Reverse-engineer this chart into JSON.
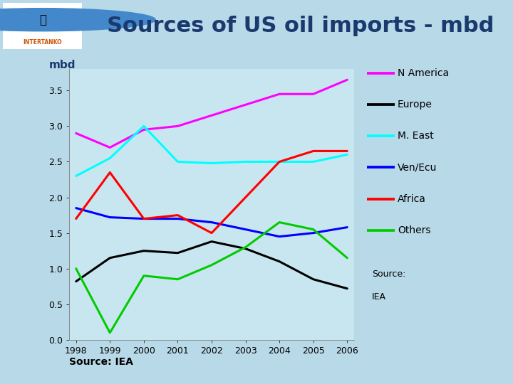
{
  "title": "Sources of US oil imports - mbd",
  "ylabel": "mbd",
  "source_text2": "Source: IEA",
  "years": [
    1998,
    1999,
    2000,
    2001,
    2002,
    2003,
    2004,
    2005,
    2006
  ],
  "series": {
    "N America": {
      "color": "#FF00FF",
      "values": [
        2.9,
        2.7,
        2.95,
        3.0,
        3.15,
        3.3,
        3.45,
        3.45,
        3.65
      ]
    },
    "Europe": {
      "color": "#000000",
      "values": [
        0.82,
        1.15,
        1.25,
        1.22,
        1.38,
        1.28,
        1.1,
        0.85,
        0.72
      ]
    },
    "M. East": {
      "color": "#00FFFF",
      "values": [
        2.3,
        2.55,
        3.0,
        2.5,
        2.48,
        2.5,
        2.5,
        2.5,
        2.6
      ]
    },
    "Ven/Ecu": {
      "color": "#0000FF",
      "values": [
        1.85,
        1.72,
        1.7,
        1.7,
        1.65,
        1.55,
        1.45,
        1.5,
        1.58
      ]
    },
    "Africa": {
      "color": "#FF0000",
      "values": [
        1.7,
        2.35,
        1.7,
        1.75,
        1.5,
        2.0,
        2.5,
        2.65,
        2.65
      ]
    },
    "Others": {
      "color": "#00CC00",
      "values": [
        1.0,
        0.1,
        0.9,
        0.85,
        1.05,
        1.3,
        1.65,
        1.55,
        1.15
      ]
    }
  },
  "ylim": [
    0.0,
    3.8
  ],
  "yticks": [
    0.0,
    0.5,
    1.0,
    1.5,
    2.0,
    2.5,
    3.0,
    3.5
  ],
  "bg_color_outer": "#B8D9E8",
  "bg_color_chart": "#C8E6F0",
  "header_bg": "#A8CDE0",
  "title_color": "#1a3a6e",
  "title_fontsize": 22,
  "ylabel_fontsize": 11,
  "tick_fontsize": 9,
  "legend_fontsize": 10,
  "line_width": 2.2
}
